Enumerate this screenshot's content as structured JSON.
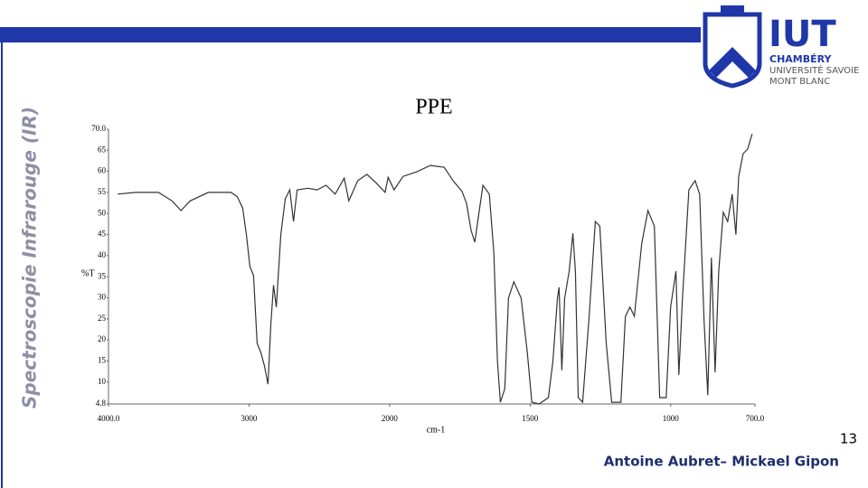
{
  "slide": {
    "side_title": "Spectroscopie Infrarouge (IR)",
    "logo": {
      "name": "IUT",
      "line1": "CHAMBÉRY",
      "line2": "UNIVERSITÉ SAVOIE",
      "line3": "MONT BLANC"
    },
    "page_number": "13",
    "authors": "Antoine Aubret– Mickael Gipon"
  },
  "chart_data": {
    "type": "line",
    "title": "PPE",
    "x_label": "cm-1",
    "y_label": "%T",
    "x": [
      3935,
      3806,
      3645,
      3548,
      3484,
      3419,
      3290,
      3129,
      3084,
      3045,
      3019,
      2994,
      2968,
      2942,
      2916,
      2890,
      2865,
      2845,
      2826,
      2806,
      2774,
      2742,
      2710,
      2684,
      2658,
      2581,
      2516,
      2452,
      2387,
      2323,
      2290,
      2226,
      2161,
      2097,
      2032,
      2010,
      1984,
      1952,
      1903,
      1855,
      1806,
      1774,
      1742,
      1726,
      1710,
      1697,
      1684,
      1668,
      1645,
      1629,
      1616,
      1606,
      1590,
      1577,
      1558,
      1532,
      1510,
      1494,
      1468,
      1435,
      1419,
      1403,
      1397,
      1387,
      1377,
      1361,
      1348,
      1339,
      1329,
      1313,
      1290,
      1268,
      1252,
      1229,
      1210,
      1177,
      1161,
      1145,
      1129,
      1103,
      1081,
      1058,
      1039,
      1016,
      1000,
      981,
      971,
      958,
      935,
      913,
      897,
      881,
      868,
      855,
      842,
      829,
      813,
      797,
      781,
      768,
      758,
      742,
      726,
      710
    ],
    "series": [
      {
        "name": "PPE",
        "color": "#333333",
        "values": [
          54.6,
          55,
          55,
          53,
          50.7,
          53,
          55,
          55,
          54,
          51.3,
          45,
          37.4,
          35.3,
          19.2,
          17,
          13.8,
          9.5,
          23.5,
          33,
          27.8,
          45,
          53.5,
          55.6,
          48.1,
          55.6,
          56,
          55.6,
          56.7,
          54.6,
          58.4,
          53,
          57.8,
          59.3,
          57.3,
          55,
          58.6,
          55.6,
          58.8,
          59.9,
          61.4,
          61,
          57.8,
          55.2,
          52.4,
          46,
          43.2,
          49.2,
          56.7,
          54.6,
          40.6,
          14.9,
          5.2,
          8.4,
          29.9,
          33.8,
          29.9,
          17,
          5.2,
          4.8,
          6.3,
          14.9,
          29.9,
          32.5,
          12.8,
          29.9,
          36.3,
          45.3,
          36.3,
          6.3,
          5.2,
          25.6,
          48.1,
          47,
          19.2,
          5.2,
          5.2,
          25.6,
          27.8,
          25.6,
          42.8,
          50.7,
          47,
          6.3,
          6.3,
          27.8,
          36.3,
          11.7,
          29.9,
          55.6,
          57.8,
          54.6,
          24.5,
          6.9,
          39.5,
          12.3,
          36.3,
          50.3,
          48.1,
          54.6,
          45,
          58.8,
          64.2,
          65.3,
          68.9
        ]
      }
    ],
    "xlim": [
      4000,
      700
    ],
    "xticks": [
      {
        "value": 4000,
        "label": "4000.0"
      },
      3000,
      2000,
      1500,
      1000,
      {
        "value": 700,
        "label": "700.0"
      }
    ],
    "ylim": [
      4.8,
      70
    ],
    "yticks": [
      {
        "value": 70,
        "label": "70.0"
      },
      65,
      60,
      55,
      50,
      45,
      40,
      35,
      30,
      25,
      20,
      15,
      10,
      4.8
    ],
    "grid": false
  }
}
